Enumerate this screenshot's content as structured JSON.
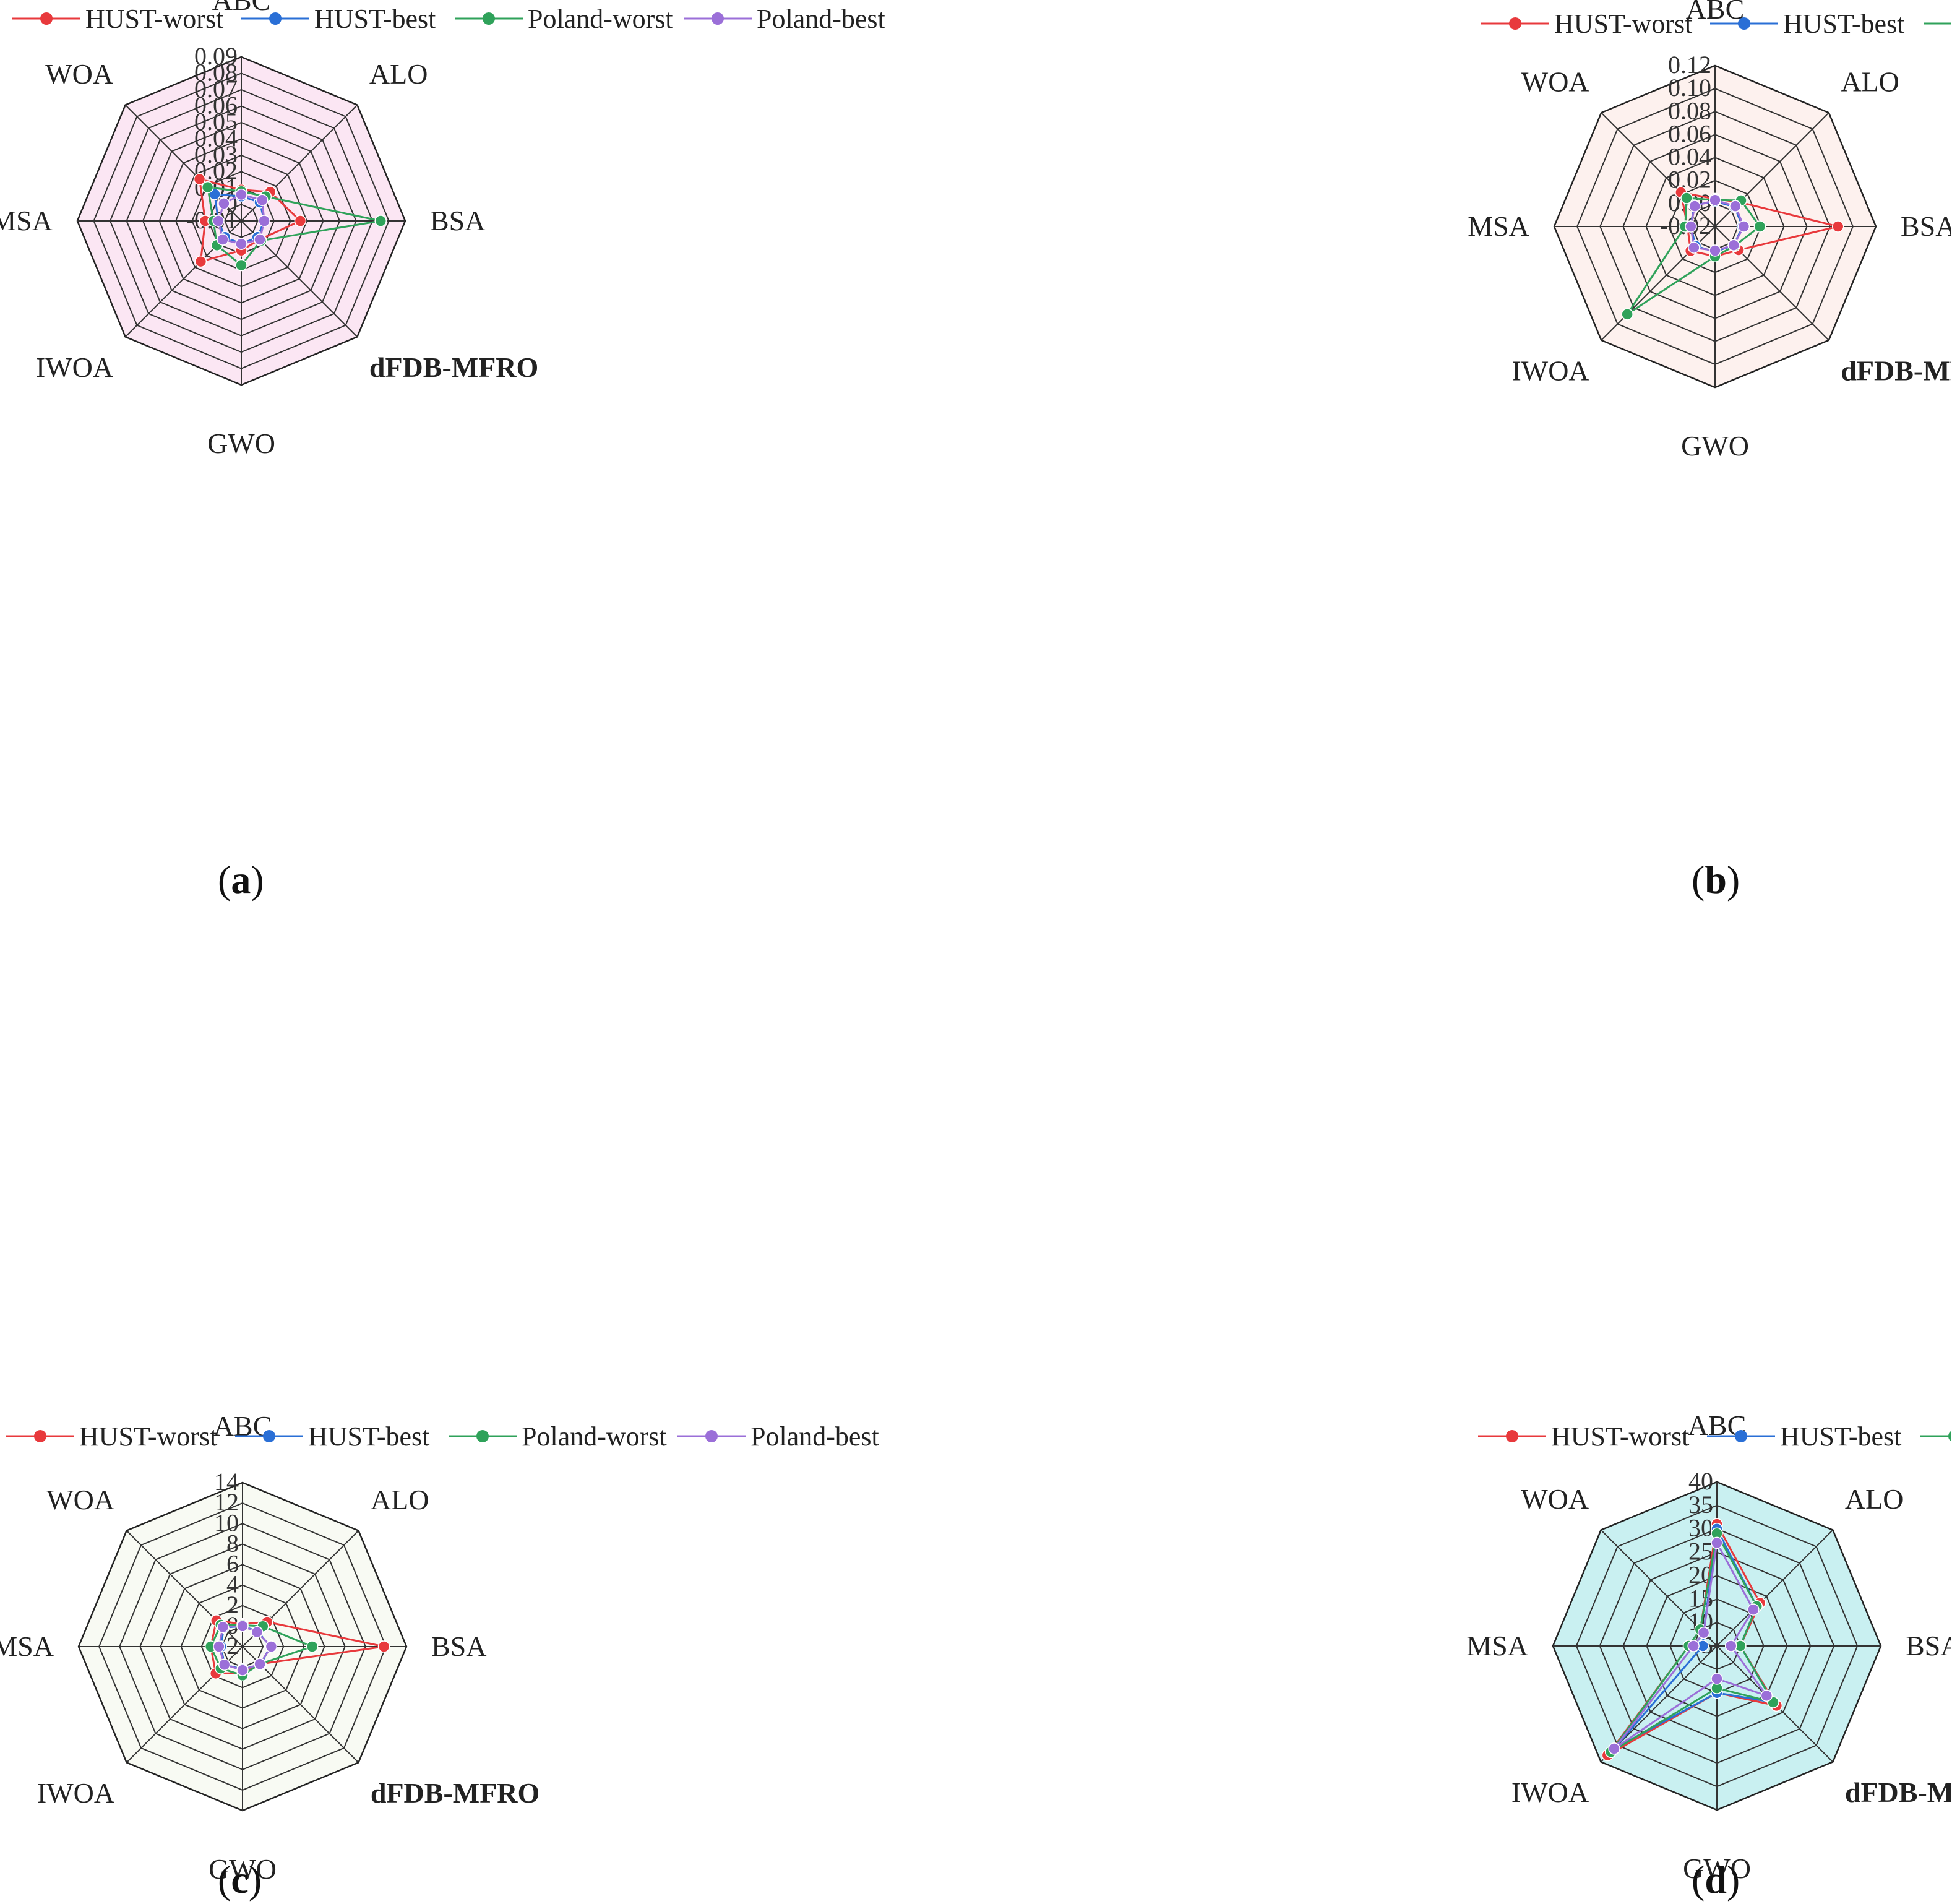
{
  "legend": [
    {
      "name": "HUST-worst",
      "color": "#e8393c"
    },
    {
      "name": "HUST-best",
      "color": "#2a6fd6"
    },
    {
      "name": "Poland-worst",
      "color": "#2fa25a"
    },
    {
      "name": "Poland-best",
      "color": "#9b6fd8"
    }
  ],
  "axes": [
    "ABC",
    "ALO",
    "BSA",
    "dFDB-MFRO",
    "GWO",
    "IWOA",
    "MSA",
    "WOA"
  ],
  "bold_axis": "dFDB-MFRO",
  "captions": [
    "a",
    "b",
    "c",
    "d"
  ],
  "chart_data": [
    {
      "type": "radar",
      "panel": "a",
      "background": "#fbe6f3",
      "ticks": [
        "-0.01",
        "0",
        "0.01",
        "0.02",
        "0.03",
        "0.04",
        "0.05",
        "0.06",
        "0.07",
        "0.08",
        "0.09"
      ],
      "rlim": [
        -0.01,
        0.09
      ],
      "categories": [
        "ABC",
        "ALO",
        "BSA",
        "dFDB-MFRO",
        "GWO",
        "IWOA",
        "MSA",
        "WOA"
      ],
      "series": [
        {
          "name": "HUST-worst",
          "values": [
            0.009,
            0.015,
            0.026,
            0.006,
            0.008,
            0.025,
            0.012,
            0.026
          ]
        },
        {
          "name": "HUST-best",
          "values": [
            0.005,
            0.006,
            0.004,
            0.004,
            0.004,
            0.004,
            0.004,
            0.013
          ]
        },
        {
          "name": "Poland-worst",
          "values": [
            0.008,
            0.011,
            0.075,
            0.007,
            0.017,
            0.011,
            0.007,
            0.019
          ]
        },
        {
          "name": "Poland-best",
          "values": [
            0.006,
            0.008,
            0.004,
            0.006,
            0.004,
            0.006,
            0.004,
            0.005
          ]
        }
      ]
    },
    {
      "type": "radar",
      "panel": "b",
      "background": "#fdf1ee",
      "ticks": [
        "-0.02",
        "0.00",
        "0.02",
        "0.04",
        "0.06",
        "0.08",
        "0.10",
        "0.12"
      ],
      "rlim": [
        -0.02,
        0.12
      ],
      "categories": [
        "ABC",
        "ALO",
        "BSA",
        "dFDB-MFRO",
        "GWO",
        "IWOA",
        "MSA",
        "WOA"
      ],
      "series": [
        {
          "name": "HUST-worst",
          "values": [
            0.004,
            0.01,
            0.087,
            0.009,
            0.006,
            0.01,
            0.004,
            0.022
          ]
        },
        {
          "name": "HUST-best",
          "values": [
            0.002,
            0.004,
            0.004,
            0.003,
            0.002,
            0.004,
            0.001,
            0.006
          ]
        },
        {
          "name": "Poland-worst",
          "values": [
            0.003,
            0.012,
            0.019,
            0.004,
            0.006,
            0.088,
            0.006,
            0.015
          ]
        },
        {
          "name": "Poland-best",
          "values": [
            0.003,
            0.005,
            0.005,
            0.003,
            0.001,
            0.006,
            0.001,
            0.005
          ]
        }
      ]
    },
    {
      "type": "radar",
      "panel": "c",
      "background": "#f8faf3",
      "ticks": [
        "-2",
        "0",
        "2",
        "4",
        "6",
        "8",
        "10",
        "12",
        "14"
      ],
      "rlim": [
        -2,
        14
      ],
      "categories": [
        "ABC",
        "ALO",
        "BSA",
        "dFDB-MFRO",
        "GWO",
        "IWOA",
        "MSA",
        "WOA"
      ],
      "series": [
        {
          "name": "HUST-worst",
          "values": [
            0.2,
            1.4,
            11.8,
            0.4,
            0.6,
            1.7,
            1.1,
            1.6
          ]
        },
        {
          "name": "HUST-best",
          "values": [
            0.0,
            0.1,
            0.7,
            0.5,
            0.2,
            0.5,
            0.1,
            0.6
          ]
        },
        {
          "name": "Poland-worst",
          "values": [
            0.1,
            0.8,
            4.8,
            0.4,
            0.8,
            1.0,
            1.1,
            1.0
          ]
        },
        {
          "name": "Poland-best",
          "values": [
            0.0,
            0.0,
            0.8,
            0.4,
            0.3,
            0.5,
            0.3,
            0.7
          ]
        }
      ]
    },
    {
      "type": "radar",
      "panel": "d",
      "background": "#c9f0f1",
      "ticks": [
        "5",
        "10",
        "15",
        "20",
        "25",
        "30",
        "35",
        "40"
      ],
      "rlim": [
        5,
        40
      ],
      "categories": [
        "ABC",
        "ALO",
        "BSA",
        "dFDB-MFRO",
        "GWO",
        "IWOA",
        "MSA",
        "WOA"
      ],
      "series": [
        {
          "name": "HUST-worst",
          "values": [
            31,
            18,
            10,
            23,
            15,
            38,
            11,
            10
          ]
        },
        {
          "name": "HUST-best",
          "values": [
            30,
            17,
            10,
            22,
            15,
            36,
            8,
            9
          ]
        },
        {
          "name": "Poland-worst",
          "values": [
            29,
            17,
            10,
            22,
            14,
            37,
            11,
            10
          ]
        },
        {
          "name": "Poland-best",
          "values": [
            27,
            16,
            8,
            20,
            12,
            36,
            10,
            9
          ]
        }
      ]
    }
  ]
}
